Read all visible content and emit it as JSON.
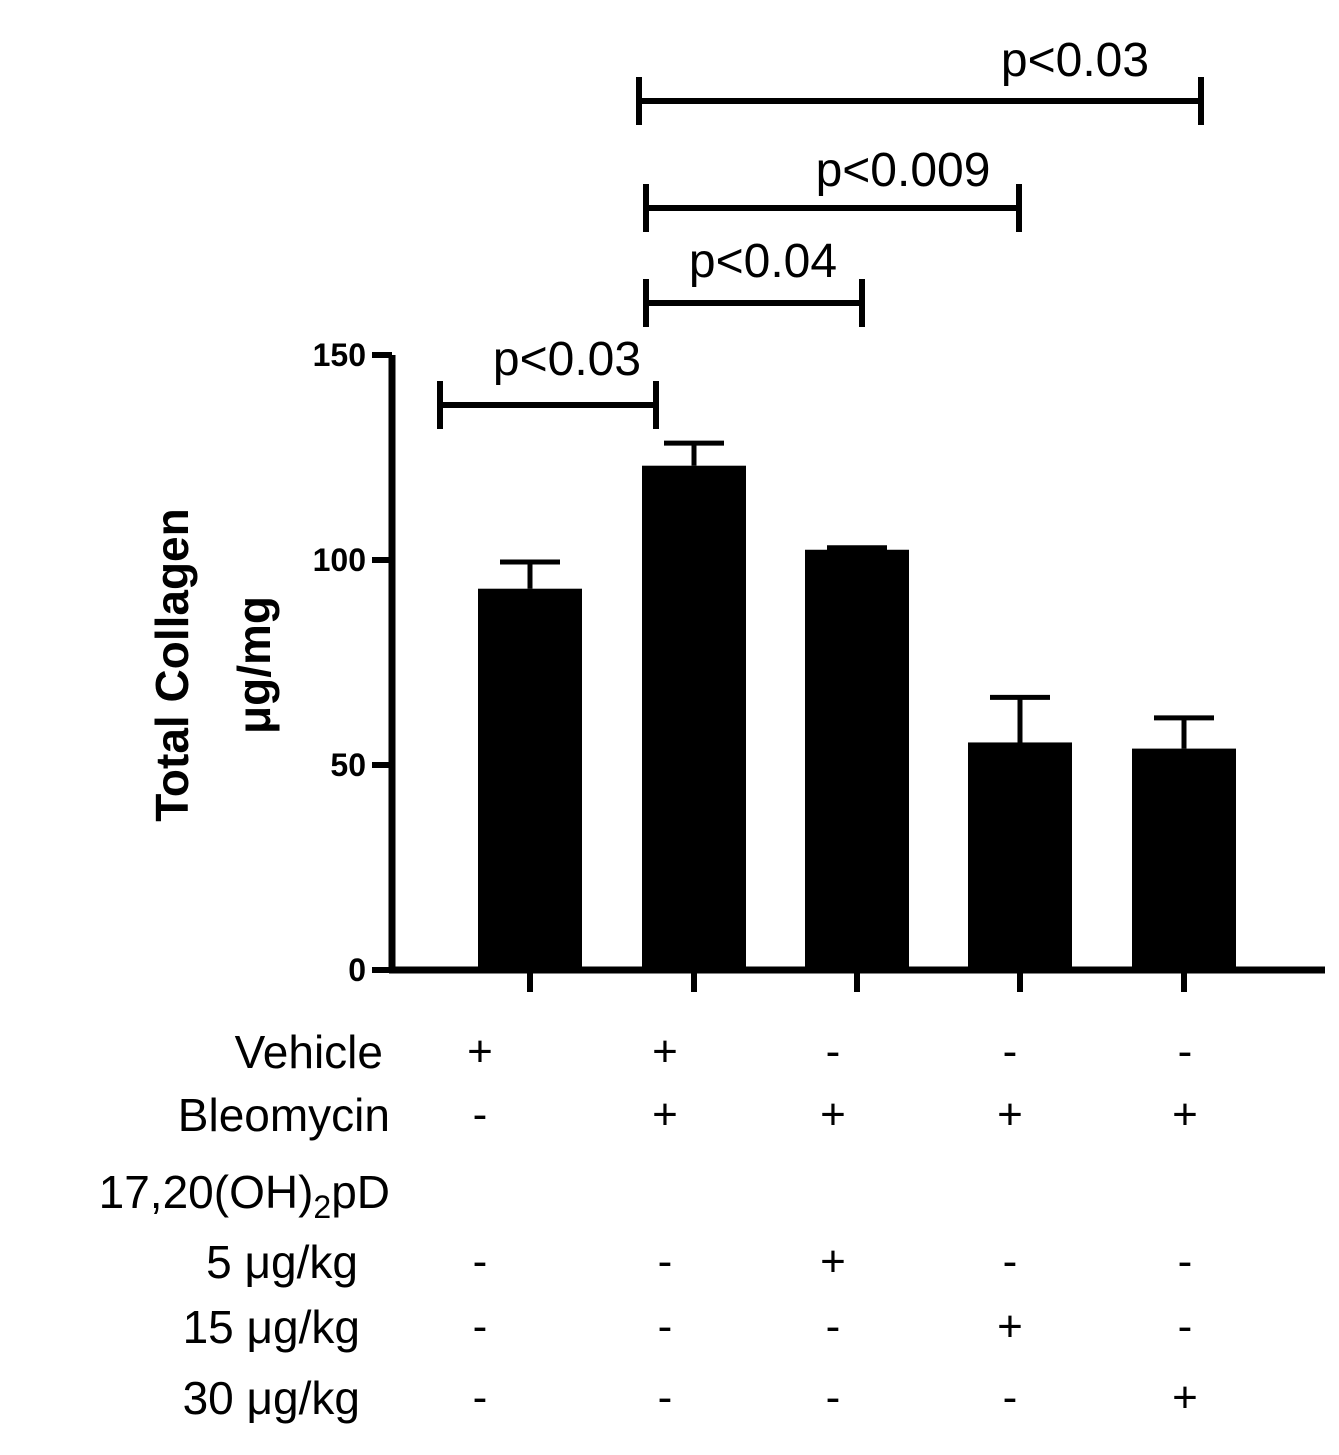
{
  "chart_data": {
    "type": "bar",
    "ylabel": [
      "Total Collagen",
      "μg/mg"
    ],
    "ylim": [
      0,
      150
    ],
    "yticks": [
      0,
      50,
      100,
      150
    ],
    "bar_color": "#000000",
    "series": [
      {
        "values": [
          93,
          123,
          102.5,
          55.5,
          54
        ],
        "errors": [
          6.5,
          5.5,
          0.5,
          11,
          7.5
        ]
      }
    ],
    "comparisons": [
      {
        "from": 0,
        "to": 1,
        "label": "p<0.03"
      },
      {
        "from": 1,
        "to": 2,
        "label": "p<0.04"
      },
      {
        "from": 1,
        "to": 3,
        "label": "p<0.009"
      },
      {
        "from": 1,
        "to": 4,
        "label": "p<0.03"
      }
    ],
    "treatment_table": {
      "header_label": "17,20(OH)",
      "header_subscript": "2",
      "header_suffix": "pD",
      "rows": [
        {
          "label": "Vehicle",
          "signs": [
            "+",
            "+",
            "-",
            "-",
            "-"
          ]
        },
        {
          "label": "Bleomycin",
          "signs": [
            "-",
            "+",
            "+",
            "+",
            "+"
          ]
        },
        {
          "label": "5 μg/kg",
          "signs": [
            "-",
            "-",
            "+",
            "-",
            "-"
          ]
        },
        {
          "label": "15 μg/kg",
          "signs": [
            "-",
            "-",
            "-",
            "+",
            "-"
          ]
        },
        {
          "label": "30 μg/kg",
          "signs": [
            "-",
            "-",
            "-",
            "-",
            "+"
          ]
        }
      ]
    }
  }
}
